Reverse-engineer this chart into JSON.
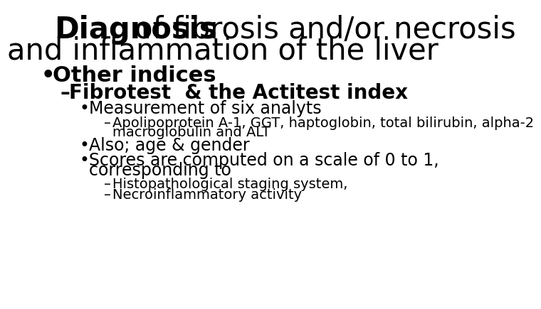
{
  "background_color": "#ffffff",
  "title_line1_bold": "Diagnosis",
  "title_line1_rest": " of fibrosis and/or necrosis",
  "title_line2": "and inflammation of the liver",
  "bullet1": "Other indices",
  "sub_bullet1": "Fibrotest  & the Actitest index",
  "sub_sub_bullet1": "Measurement of six analyts",
  "sub_sub_sub_bullet1a": "Apolipoprotein A-1, GGT, haptoglobin, total bilirubin, alpha-2",
  "sub_sub_sub_bullet1b": "macroglobulin and ALT",
  "sub_sub_bullet2": "Also; age & gender",
  "sub_sub_bullet3a": "Scores are computed on a scale of 0 to 1,",
  "sub_sub_bullet3b": "corresponding to",
  "sub_sub_sub_bullet3a": "Histopathological staging system,",
  "sub_sub_sub_bullet3b": "Necroinflammatory activity",
  "title_bold_size": 30,
  "title_size": 30,
  "bullet1_size": 22,
  "sub_bullet1_size": 20,
  "sub_sub_size": 17,
  "sub_sub_sub_size": 14
}
